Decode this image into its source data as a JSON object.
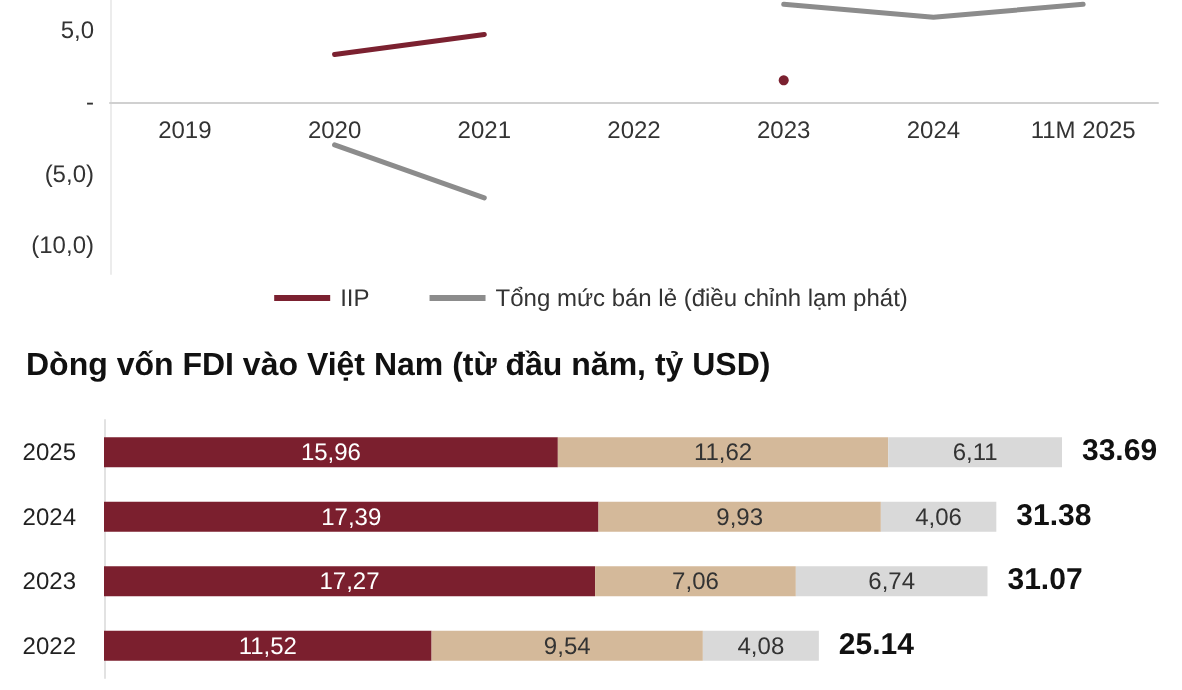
{
  "chart_data": [
    {
      "type": "line",
      "categories": [
        "2019",
        "2020",
        "2021",
        "2022",
        "2023",
        "2024",
        "11M 2025"
      ],
      "series": [
        {
          "name": "IIP",
          "color": "#7b2130",
          "values": [
            null,
            3.3,
            4.7,
            null,
            1.5,
            null,
            null
          ]
        },
        {
          "name": "Tổng mức bán lẻ (điều chỉnh lạm phát)",
          "color": "#8c8c8c",
          "values": [
            null,
            -3.0,
            -6.7,
            null,
            6.8,
            5.9,
            6.8
          ]
        }
      ],
      "ylim": [
        -12,
        7.1
      ],
      "yticks": [
        {
          "value": 5,
          "label": "5,0"
        },
        {
          "value": 0,
          "label": "-"
        },
        {
          "value": -5,
          "label": "(5,0)"
        },
        {
          "value": -10,
          "label": "(10,0)"
        }
      ],
      "grid": false,
      "legend": "bottom",
      "marker": "none",
      "line_style": "solid"
    },
    {
      "type": "bar",
      "title": "Dòng vốn FDI vào Việt Nam (từ đầu năm, tỷ USD)",
      "orientation": "horizontal",
      "stacked": true,
      "tick_labels": "y",
      "grid": false,
      "categories": [
        "2025",
        "2024",
        "2023",
        "2022"
      ],
      "series": [
        {
          "color": "#7b1f2e",
          "values": [
            15.96,
            17.39,
            17.27,
            11.52
          ],
          "value_labels": [
            "15,96",
            "17,39",
            "17,27",
            "11,52"
          ]
        },
        {
          "color": "#d4b99a",
          "values": [
            11.62,
            9.93,
            7.06,
            9.54
          ],
          "value_labels": [
            "11,62",
            "9,93",
            "7,06",
            "9,54"
          ]
        },
        {
          "color": "#d9d9d9",
          "values": [
            6.11,
            4.06,
            6.74,
            4.08
          ],
          "value_labels": [
            "6,11",
            "4,06",
            "6,74",
            "4,08"
          ]
        }
      ],
      "totals": [
        "33.69",
        "31.38",
        "31.07",
        "25.14"
      ]
    }
  ]
}
